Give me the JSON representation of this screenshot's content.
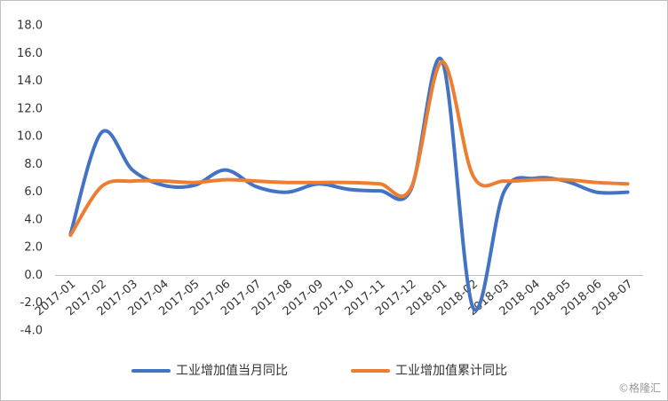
{
  "chart_data": {
    "type": "line",
    "categories": [
      "2017-01",
      "2017-02",
      "2017-03",
      "2017-04",
      "2017-05",
      "2017-06",
      "2017-07",
      "2017-08",
      "2017-09",
      "2017-10",
      "2017-11",
      "2017-12",
      "2018-01",
      "2018-02",
      "2018-03",
      "2018-04",
      "2018-05",
      "2018-06",
      "2018-07"
    ],
    "series": [
      {
        "name": "工业增加值当月同比",
        "color": "#4472c4",
        "values": [
          3.0,
          10.3,
          7.6,
          6.5,
          6.5,
          7.6,
          6.4,
          6.0,
          6.6,
          6.2,
          6.1,
          6.2,
          15.5,
          -2.3,
          6.0,
          7.0,
          6.8,
          6.0,
          6.0
        ]
      },
      {
        "name": "工业增加值累计同比",
        "color": "#ed7d31",
        "values": [
          2.9,
          6.4,
          6.8,
          6.8,
          6.7,
          6.9,
          6.8,
          6.7,
          6.7,
          6.7,
          6.6,
          6.3,
          15.4,
          7.2,
          6.8,
          6.9,
          6.9,
          6.7,
          6.6
        ]
      }
    ],
    "ylim": [
      -4,
      18
    ],
    "yticks": [
      {
        "value": -4,
        "label": "-4.0"
      },
      {
        "value": -2,
        "label": "-2.0"
      },
      {
        "value": 0,
        "label": "0.0"
      },
      {
        "value": 2,
        "label": "2.0"
      },
      {
        "value": 4,
        "label": "4.0"
      },
      {
        "value": 6,
        "label": "6.0"
      },
      {
        "value": 8,
        "label": "8.0"
      },
      {
        "value": 10,
        "label": "10.0"
      },
      {
        "value": 12,
        "label": "12.0"
      },
      {
        "value": 14,
        "label": "14.0"
      },
      {
        "value": 16,
        "label": "16.0"
      },
      {
        "value": 18,
        "label": "18.0"
      }
    ],
    "legend": "bottom",
    "watermark": "©格隆汇"
  }
}
